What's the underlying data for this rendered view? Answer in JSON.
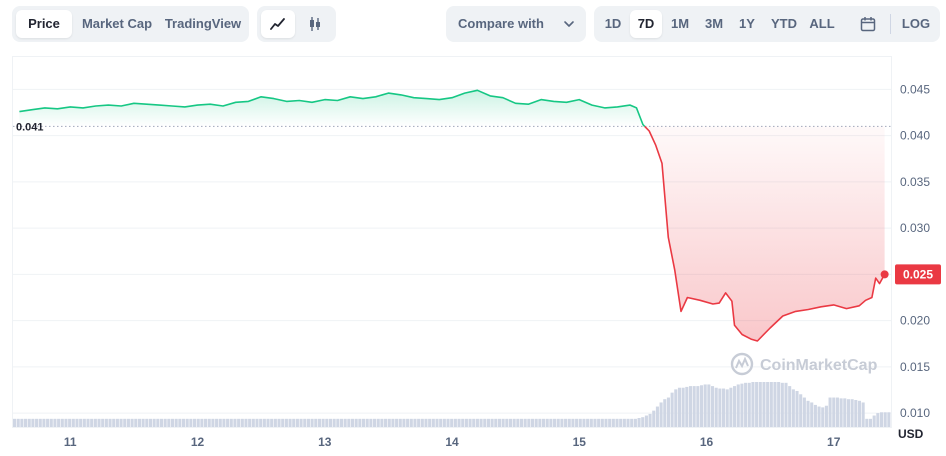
{
  "toolbar": {
    "metric_tabs": [
      "Price",
      "Market Cap",
      "TradingView"
    ],
    "compare_label": "Compare with",
    "ranges": [
      "1D",
      "7D",
      "1M",
      "3M",
      "1Y",
      "YTD",
      "ALL"
    ],
    "active_range": "7D",
    "log_label": "LOG"
  },
  "colors": {
    "up": "#16c784",
    "down": "#ea3943",
    "volume": "#cfd6e4",
    "reference": "#a1a7bb"
  },
  "watermark": "CoinMarketCap",
  "chart_data": {
    "type": "area",
    "title": "",
    "xlabel": "",
    "ylabel": "USD",
    "x_ticks": [
      "11",
      "12",
      "13",
      "14",
      "15",
      "16",
      "17"
    ],
    "x_range": [
      10.55,
      17.45
    ],
    "y_ticks": [
      0.01,
      0.015,
      0.02,
      0.025,
      0.03,
      0.035,
      0.04,
      0.045
    ],
    "ylim": [
      0.0085,
      0.0485
    ],
    "reference_line": {
      "value": 0.041,
      "label": "0.041"
    },
    "current_price": {
      "value": 0.025,
      "label": "0.025"
    },
    "grid": true,
    "series": [
      {
        "points": [
          [
            10.6,
            0.0426
          ],
          [
            10.7,
            0.0428
          ],
          [
            10.8,
            0.043
          ],
          [
            10.9,
            0.0429
          ],
          [
            11.0,
            0.0431
          ],
          [
            11.1,
            0.043
          ],
          [
            11.2,
            0.0432
          ],
          [
            11.3,
            0.0433
          ],
          [
            11.4,
            0.0432
          ],
          [
            11.5,
            0.0435
          ],
          [
            11.6,
            0.0434
          ],
          [
            11.7,
            0.0433
          ],
          [
            11.8,
            0.0432
          ],
          [
            11.9,
            0.0431
          ],
          [
            12.0,
            0.0433
          ],
          [
            12.1,
            0.0434
          ],
          [
            12.2,
            0.0432
          ],
          [
            12.3,
            0.0436
          ],
          [
            12.4,
            0.0437
          ],
          [
            12.5,
            0.0442
          ],
          [
            12.6,
            0.044
          ],
          [
            12.7,
            0.0437
          ],
          [
            12.8,
            0.0438
          ],
          [
            12.9,
            0.0436
          ],
          [
            13.0,
            0.0439
          ],
          [
            13.1,
            0.0438
          ],
          [
            13.2,
            0.0442
          ],
          [
            13.3,
            0.044
          ],
          [
            13.4,
            0.0442
          ],
          [
            13.5,
            0.0446
          ],
          [
            13.6,
            0.0444
          ],
          [
            13.7,
            0.0441
          ],
          [
            13.8,
            0.044
          ],
          [
            13.9,
            0.0439
          ],
          [
            14.0,
            0.0441
          ],
          [
            14.1,
            0.0446
          ],
          [
            14.2,
            0.0449
          ],
          [
            14.3,
            0.0443
          ],
          [
            14.4,
            0.0441
          ],
          [
            14.5,
            0.0435
          ],
          [
            14.6,
            0.0434
          ],
          [
            14.7,
            0.0439
          ],
          [
            14.8,
            0.0437
          ],
          [
            14.9,
            0.0436
          ],
          [
            15.0,
            0.0439
          ],
          [
            15.1,
            0.0433
          ],
          [
            15.2,
            0.043
          ],
          [
            15.3,
            0.0431
          ],
          [
            15.4,
            0.0433
          ],
          [
            15.45,
            0.043
          ],
          [
            15.5,
            0.0412
          ],
          [
            15.55,
            0.0405
          ],
          [
            15.6,
            0.039
          ],
          [
            15.65,
            0.037
          ],
          [
            15.7,
            0.029
          ],
          [
            15.75,
            0.0255
          ],
          [
            15.8,
            0.021
          ],
          [
            15.85,
            0.0225
          ],
          [
            15.95,
            0.0222
          ],
          [
            16.05,
            0.0218
          ],
          [
            16.1,
            0.0219
          ],
          [
            16.15,
            0.023
          ],
          [
            16.2,
            0.0221
          ],
          [
            16.22,
            0.0195
          ],
          [
            16.28,
            0.0185
          ],
          [
            16.35,
            0.018
          ],
          [
            16.4,
            0.0178
          ],
          [
            16.5,
            0.0192
          ],
          [
            16.6,
            0.0205
          ],
          [
            16.7,
            0.021
          ],
          [
            16.8,
            0.0212
          ],
          [
            16.9,
            0.0215
          ],
          [
            17.0,
            0.0217
          ],
          [
            17.1,
            0.0213
          ],
          [
            17.2,
            0.0216
          ],
          [
            17.25,
            0.0222
          ],
          [
            17.3,
            0.0225
          ],
          [
            17.33,
            0.0246
          ],
          [
            17.36,
            0.024
          ],
          [
            17.4,
            0.025
          ]
        ]
      }
    ],
    "volume": [
      1,
      1,
      1,
      1,
      1,
      1,
      1,
      1,
      1,
      1,
      1,
      1,
      1,
      1,
      1,
      1,
      1,
      1,
      1,
      1,
      1,
      1,
      1,
      1,
      1,
      1,
      1,
      1,
      1,
      1,
      1,
      1,
      1,
      1,
      1,
      1,
      1,
      1,
      1,
      1,
      1,
      1,
      1,
      1,
      1,
      1,
      1,
      1,
      1,
      1,
      1,
      1,
      1,
      1,
      1,
      1,
      1,
      1,
      1,
      1,
      1,
      1,
      1,
      1,
      1,
      1,
      1,
      1,
      1,
      1,
      1,
      1,
      1,
      1,
      1,
      1,
      1,
      1,
      1,
      1,
      1,
      1,
      1,
      1,
      1,
      1,
      1,
      1,
      1,
      1,
      1,
      1,
      1,
      1,
      1,
      1,
      1,
      1,
      1,
      1,
      1,
      1,
      1,
      1,
      1,
      1,
      1,
      1,
      1,
      1,
      1,
      1,
      1,
      1,
      1,
      1,
      1,
      1,
      1,
      1,
      1,
      1,
      1,
      1,
      1,
      1,
      1,
      1,
      1,
      1,
      1,
      1,
      1,
      1,
      1,
      1,
      1,
      1,
      1,
      1,
      1,
      1,
      1,
      1,
      1,
      1,
      1,
      1,
      1,
      1,
      1,
      1,
      1,
      1,
      1,
      1,
      1,
      1,
      1,
      1,
      1,
      1,
      1,
      1,
      1,
      1,
      1,
      1,
      1,
      1,
      1.1,
      1.2,
      1.4,
      1.6,
      2.0,
      2.5,
      3.0,
      3.4,
      3.6,
      4.2,
      4.6,
      4.8,
      4.8,
      4.9,
      5.0,
      5.0,
      5.0,
      5.1,
      5.2,
      5.2,
      5.0,
      4.8,
      4.7,
      4.7,
      4.6,
      4.8,
      5.0,
      5.2,
      5.3,
      5.4,
      5.4,
      5.5,
      5.5,
      5.5,
      5.5,
      5.5,
      5.5,
      5.5,
      5.5,
      5.4,
      5.4,
      5.0,
      4.6,
      4.4,
      4.0,
      3.6,
      3.2,
      3.0,
      2.7,
      2.5,
      2.4,
      2.6,
      3.6,
      3.6,
      3.6,
      3.5,
      3.5,
      3.4,
      3.4,
      3.3,
      3.2,
      3.0,
      1.0,
      1.0,
      1.4,
      1.7,
      1.8,
      1.8,
      1.8
    ]
  }
}
